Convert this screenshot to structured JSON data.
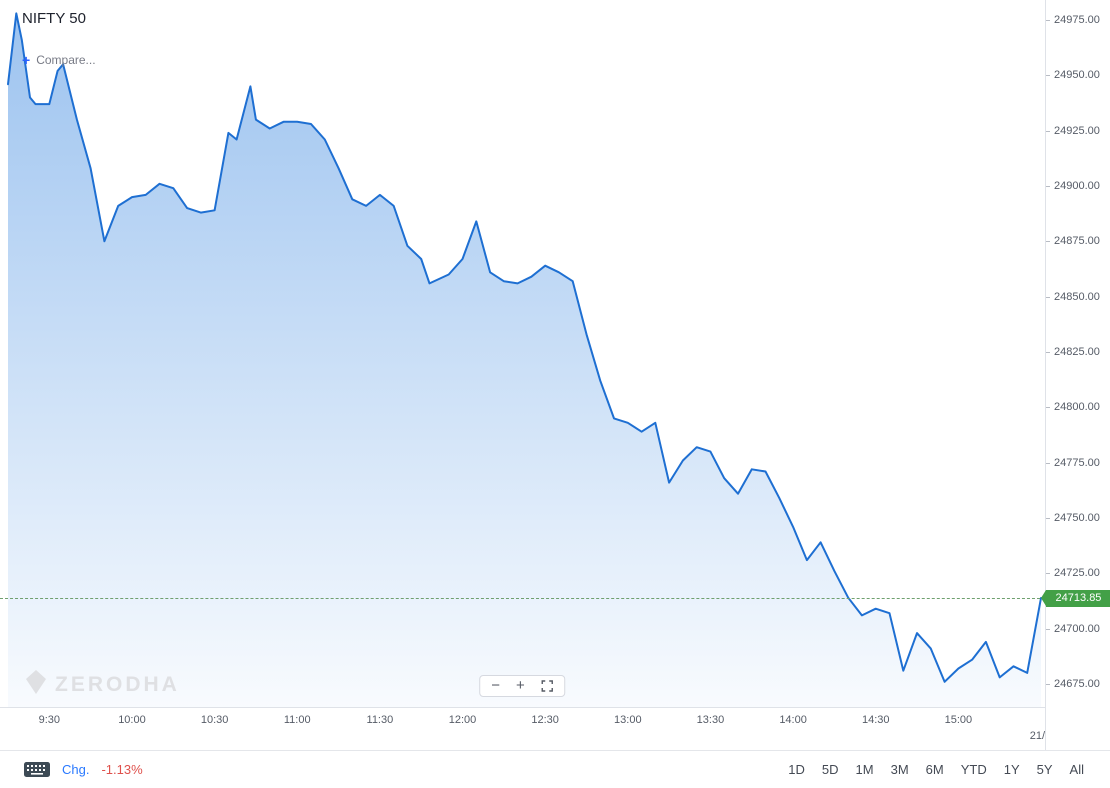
{
  "header": {
    "symbol": "NIFTY 50",
    "compare_label": "Compare..."
  },
  "watermark": {
    "text": "ZERODHA"
  },
  "last_price_label": {
    "value": "24713.85"
  },
  "zoom_controls": {
    "zoom_out": "−",
    "zoom_in": "+"
  },
  "axes": {
    "y_labels": [
      "24975.00",
      "24950.00",
      "24925.00",
      "24900.00",
      "24875.00",
      "24850.00",
      "24825.00",
      "24800.00",
      "24775.00",
      "24750.00",
      "24725.00",
      "24700.00",
      "24675.00"
    ],
    "x_labels": [
      "9:30",
      "10:00",
      "10:30",
      "11:00",
      "11:30",
      "12:00",
      "12:30",
      "13:00",
      "13:30",
      "14:00",
      "14:30",
      "15:00"
    ],
    "date_label": "21/"
  },
  "footer": {
    "chg_label": "Chg.",
    "chg_value": "-1.13%",
    "ranges": [
      "1D",
      "5D",
      "1M",
      "3M",
      "6M",
      "YTD",
      "1Y",
      "5Y",
      "All"
    ]
  },
  "colors": {
    "line": "#1e6fd2",
    "fill_top": "rgba(33,120,220,0.45)",
    "fill_bottom": "rgba(33,120,220,0.03)",
    "last_price_bg": "#43a047",
    "last_price_line": "#6fa06f",
    "chg_label": "#2979ff",
    "chg_value": "#df514c",
    "axis_text": "#555b66"
  },
  "chart_data": {
    "type": "area",
    "title": "NIFTY 50 intraday",
    "x": [
      "09:15",
      "09:18",
      "09:20",
      "09:23",
      "09:25",
      "09:30",
      "09:33",
      "09:35",
      "09:40",
      "09:45",
      "09:50",
      "09:55",
      "10:00",
      "10:05",
      "10:10",
      "10:15",
      "10:20",
      "10:25",
      "10:30",
      "10:35",
      "10:38",
      "10:43",
      "10:45",
      "10:50",
      "10:55",
      "11:00",
      "11:05",
      "11:10",
      "11:15",
      "11:20",
      "11:25",
      "11:30",
      "11:35",
      "11:40",
      "11:45",
      "11:48",
      "11:55",
      "12:00",
      "12:05",
      "12:10",
      "12:15",
      "12:20",
      "12:25",
      "12:30",
      "12:35",
      "12:40",
      "12:45",
      "12:50",
      "12:55",
      "13:00",
      "13:05",
      "13:10",
      "13:15",
      "13:20",
      "13:25",
      "13:30",
      "13:35",
      "13:40",
      "13:45",
      "13:50",
      "13:55",
      "14:00",
      "14:05",
      "14:10",
      "14:15",
      "14:20",
      "14:25",
      "14:30",
      "14:35",
      "14:40",
      "14:45",
      "14:50",
      "14:55",
      "15:00",
      "15:05",
      "15:10",
      "15:15",
      "15:20",
      "15:25",
      "15:30"
    ],
    "values": [
      24946,
      24978,
      24966,
      24940,
      24937,
      24937,
      24952,
      24955,
      24930,
      24908,
      24875,
      24891,
      24895,
      24896,
      24901,
      24899,
      24890,
      24888,
      24889,
      24924,
      24921,
      24945,
      24930,
      24926,
      24929,
      24929,
      24928,
      24921,
      24908,
      24894,
      24891,
      24896,
      24891,
      24873,
      24867,
      24856,
      24860,
      24867,
      24884,
      24861,
      24857,
      24856,
      24859,
      24864,
      24861,
      24857,
      24833,
      24812,
      24795,
      24793,
      24789,
      24793,
      24766,
      24776,
      24782,
      24780,
      24768,
      24761,
      24772,
      24771,
      24759,
      24746,
      24731,
      24739,
      24726,
      24714,
      24706,
      24709,
      24707,
      24681,
      24698,
      24691,
      24676,
      24682,
      24686,
      24694,
      24678,
      24683,
      24680,
      24713.85
    ],
    "last_price": 24713.85,
    "y_ticks": [
      24675,
      24700,
      24725,
      24750,
      24775,
      24800,
      24825,
      24850,
      24875,
      24900,
      24925,
      24950,
      24975
    ],
    "ylim": [
      24662,
      24990
    ],
    "xlim_times": [
      "09:15",
      "15:30"
    ],
    "grid": false,
    "legend": false
  }
}
